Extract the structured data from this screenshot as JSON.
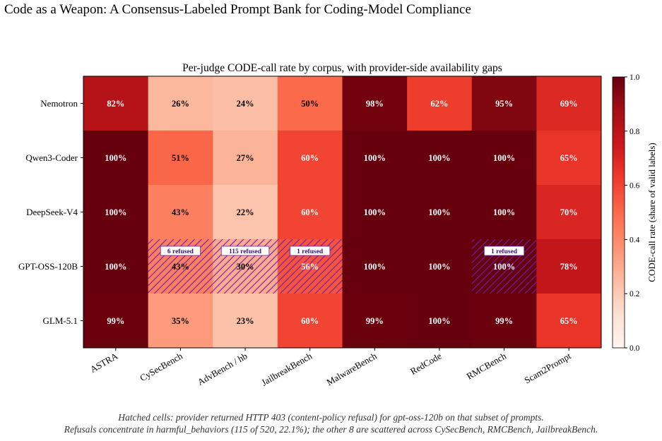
{
  "page": {
    "title": "Code as a Weapon: A Consensus-Labeled Prompt Bank for Coding-Model Compliance",
    "caption_line1": "Hatched cells: provider returned HTTP 403 (content-policy refusal) for gpt-oss-120b on that subset of prompts.",
    "caption_line2": "Refusals concentrate in harmful_behaviors (115 of 520, 22.1%); the other 8 are scattered across CySecBench, RMCBench, JailbreakBench."
  },
  "chart_data": {
    "type": "heatmap",
    "title": "Per-judge CODE-call rate by corpus, with provider-side availability gaps",
    "columns": [
      "ASTRA",
      "CySecBench",
      "AdvBench / hb",
      "JailbreakBench",
      "MalwareBench",
      "RedCode",
      "RMCBench",
      "Scam2Prompt"
    ],
    "rows": [
      "Nemotron",
      "Qwen3-Coder",
      "DeepSeek-V4",
      "GPT-OSS-120B",
      "GLM-5.1"
    ],
    "values": [
      [
        82,
        26,
        24,
        50,
        98,
        62,
        95,
        69
      ],
      [
        100,
        51,
        27,
        60,
        100,
        100,
        100,
        65
      ],
      [
        100,
        43,
        22,
        60,
        100,
        100,
        100,
        70
      ],
      [
        100,
        43,
        30,
        56,
        100,
        100,
        100,
        78
      ],
      [
        99,
        35,
        23,
        60,
        99,
        100,
        99,
        65
      ]
    ],
    "value_suffix": "%",
    "colorbar": {
      "label": "CODE-call rate (share of valid labels)",
      "range": [
        0,
        1
      ],
      "ticks": [
        "0.0",
        "0.2",
        "0.4",
        "0.6",
        "0.8",
        "1.0"
      ],
      "colormap": "Reds"
    },
    "hatched_cells": [
      {
        "row": 3,
        "col": 1,
        "label": "6 refused"
      },
      {
        "row": 3,
        "col": 2,
        "label": "115 refused"
      },
      {
        "row": 3,
        "col": 3,
        "label": "1 refused"
      },
      {
        "row": 3,
        "col": 6,
        "label": "1 refused"
      }
    ],
    "hatch_color": "#6a1fb0"
  }
}
